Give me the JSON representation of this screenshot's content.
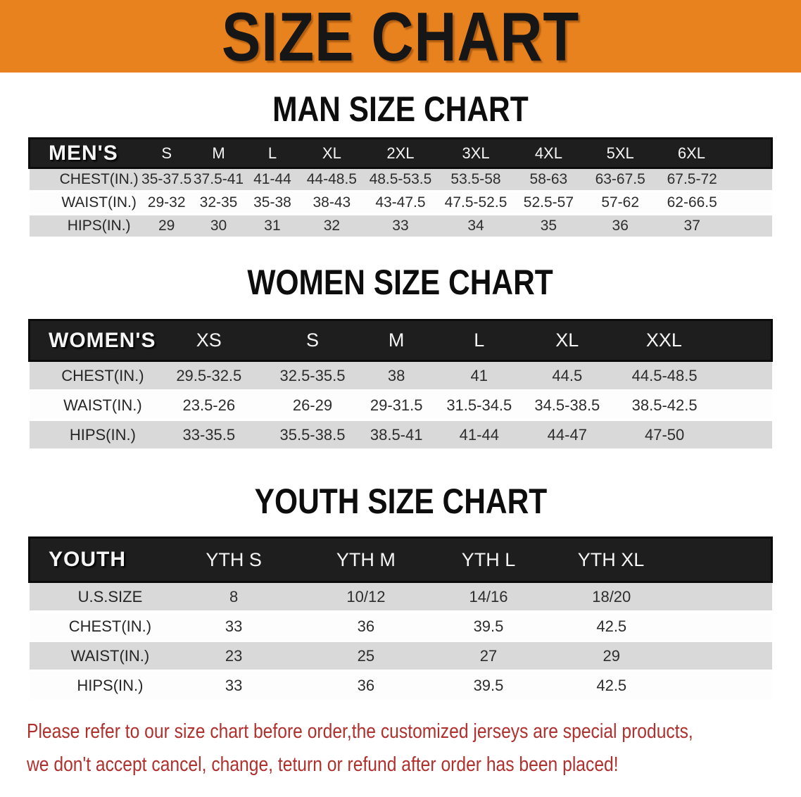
{
  "banner": {
    "title": "SIZE CHART",
    "bg_color": "#e8821e",
    "text_color": "#161616"
  },
  "sections": [
    {
      "heading": "MAN SIZE CHART",
      "table": {
        "header_label": "MEN'S",
        "columns": [
          "S",
          "M",
          "L",
          "XL",
          "2XL",
          "3XL",
          "4XL",
          "5XL",
          "6XL"
        ],
        "rows": [
          {
            "label": "CHEST(IN.)",
            "values": [
              "35-37.5",
              "37.5-41",
              "41-44",
              "44-48.5",
              "48.5-53.5",
              "53.5-58",
              "58-63",
              "63-67.5",
              "67.5-72"
            ]
          },
          {
            "label": "WAIST(IN.)",
            "values": [
              "29-32",
              "32-35",
              "35-38",
              "38-43",
              "43-47.5",
              "47.5-52.5",
              "52.5-57",
              "57-62",
              "62-66.5"
            ]
          },
          {
            "label": "HIPS(IN.)",
            "values": [
              "29",
              "30",
              "31",
              "32",
              "33",
              "34",
              "35",
              "36",
              "37"
            ]
          }
        ]
      }
    },
    {
      "heading": "WOMEN SIZE CHART",
      "table": {
        "header_label": "WOMEN'S",
        "columns": [
          "XS",
          "S",
          "M",
          "L",
          "XL",
          "XXL"
        ],
        "rows": [
          {
            "label": "CHEST(IN.)",
            "values": [
              "29.5-32.5",
              "32.5-35.5",
              "38",
              "41",
              "44.5",
              "44.5-48.5"
            ]
          },
          {
            "label": "WAIST(IN.)",
            "values": [
              "23.5-26",
              "26-29",
              "29-31.5",
              "31.5-34.5",
              "34.5-38.5",
              "38.5-42.5"
            ]
          },
          {
            "label": "HIPS(IN.)",
            "values": [
              "33-35.5",
              "35.5-38.5",
              "38.5-41",
              "41-44",
              "44-47",
              "47-50"
            ]
          }
        ]
      }
    },
    {
      "heading": "YOUTH SIZE CHART",
      "table": {
        "header_label": "YOUTH",
        "columns": [
          "YTH S",
          "YTH M",
          "YTH L",
          "YTH XL"
        ],
        "rows": [
          {
            "label": "U.S.SIZE",
            "values": [
              "8",
              "10/12",
              "14/16",
              "18/20"
            ]
          },
          {
            "label": "CHEST(IN.)",
            "values": [
              "33",
              "36",
              "39.5",
              "42.5"
            ]
          },
          {
            "label": "WAIST(IN.)",
            "values": [
              "23",
              "25",
              "27",
              "29"
            ]
          },
          {
            "label": "HIPS(IN.)",
            "values": [
              "33",
              "36",
              "39.5",
              "42.5"
            ]
          }
        ]
      }
    }
  ],
  "disclaimer": {
    "line1": "Please refer to our size chart before order,the customized jerseys are special products,",
    "line2": "we don't accept cancel, change, teturn or refund after order has been placed!",
    "color": "#b0302e"
  }
}
